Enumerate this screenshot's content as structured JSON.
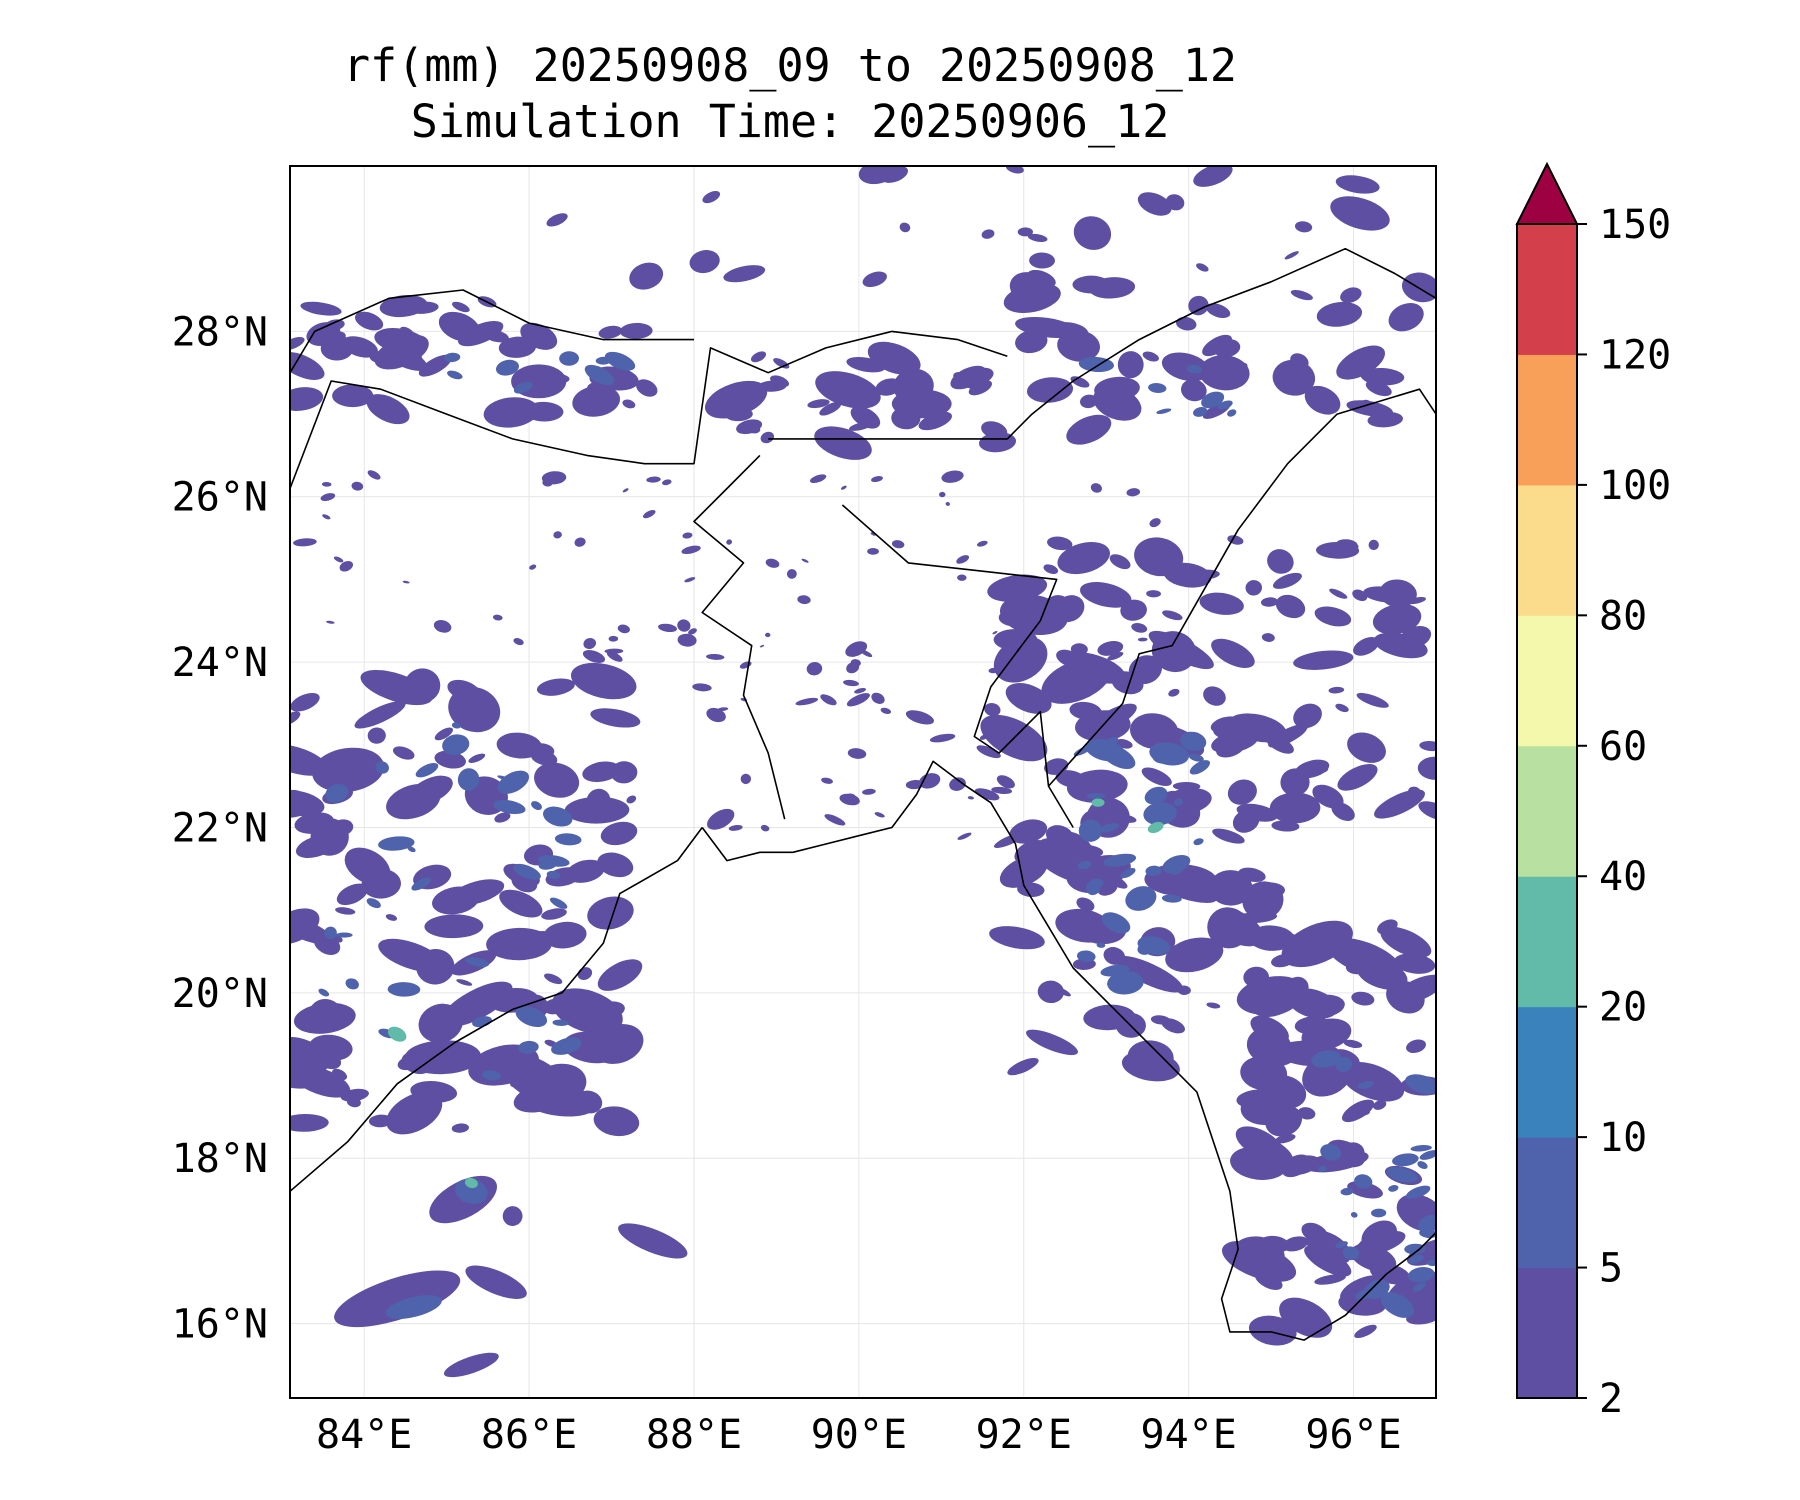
{
  "title": {
    "line1": "rf(mm) 20250908_09 to 20250908_12",
    "line2": "Simulation Time: 20250906_12"
  },
  "map": {
    "type": "filled-contour-map",
    "variable": "rf(mm)",
    "lon_range": [
      83.1,
      97.0
    ],
    "lat_range": [
      15.1,
      30.0
    ],
    "lon_ticks": [
      84,
      86,
      88,
      90,
      92,
      94,
      96
    ],
    "lat_ticks": [
      16,
      18,
      20,
      22,
      24,
      26,
      28
    ],
    "lon_tick_labels": [
      "84°E",
      "86°E",
      "88°E",
      "90°E",
      "92°E",
      "94°E",
      "96°E"
    ],
    "lat_tick_labels": [
      "16°N",
      "18°N",
      "20°N",
      "22°N",
      "24°N",
      "26°N",
      "28°N"
    ],
    "grid": true,
    "coastline_color": "#000000"
  },
  "colorbar": {
    "levels": [
      "2",
      "5",
      "10",
      "20",
      "40",
      "60",
      "80",
      "100",
      "120",
      "150"
    ],
    "colors": [
      "#5e4fa2",
      "#4e63ab",
      "#3a82bb",
      "#62bba8",
      "#b8e0a0",
      "#f3f8ad",
      "#fbdc8c",
      "#f8a05a",
      "#d3404c"
    ],
    "extend_color": "#9e0142",
    "extend": "max",
    "placement": "right"
  }
}
